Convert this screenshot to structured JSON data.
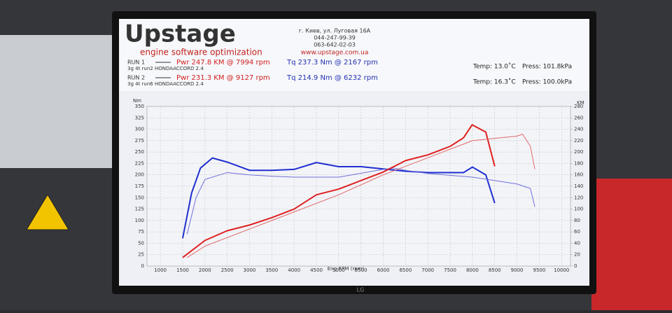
{
  "header": {
    "logo": "Upstage",
    "tagline": "engine software optimization",
    "address": "г. Киев, ул. Луговая 16А",
    "phone1": "044-247-99-39",
    "phone2": "063-642-02-03",
    "website": "www.upstage.com.ua"
  },
  "runs": [
    {
      "name": "RUN 1",
      "car": "3g 4t run2 HONDAACCORD 2.4",
      "power": "Pwr  247.8 KM @ 7994 rpm",
      "torque": "Tq 237.3 Nm @ 2167 rpm",
      "temp": "Temp: 13.0˚C",
      "press": "Press: 101.8kPa"
    },
    {
      "name": "RUN 2",
      "car": "3g 4t run6 HONDAACCORD 2.4",
      "power": "Pwr  231.3 KM @ 9127 rpm",
      "torque": "Tq 214.9 Nm @ 6232 rpm",
      "temp": "Temp: 16.3˚C",
      "press": "Press: 100.0kPa"
    }
  ],
  "brand": "LG",
  "chart_data": {
    "type": "line",
    "x_label": "Eng RPM (rpm)",
    "y_label": "Nm",
    "y2_label": "KM",
    "grid": true,
    "xlim": [
      700,
      10200
    ],
    "xticks": [
      1000,
      1500,
      2000,
      2500,
      3000,
      3500,
      4000,
      4500,
      5000,
      5500,
      6000,
      6500,
      7000,
      7500,
      8000,
      8500,
      9000,
      9500,
      10000
    ],
    "ylim": [
      0,
      350
    ],
    "yticks": [
      0,
      25,
      50,
      75,
      100,
      125,
      150,
      175,
      200,
      225,
      250,
      275,
      300,
      325,
      350
    ],
    "y2lim": [
      0,
      280
    ],
    "y2ticks": [
      0,
      20,
      40,
      60,
      80,
      100,
      120,
      140,
      160,
      180,
      200,
      220,
      240,
      260,
      280
    ],
    "series": [
      {
        "color": "#1f2fd0",
        "width": 2,
        "x": [
          1500,
          1700,
          1900,
          2167,
          2500,
          3000,
          3500,
          4000,
          4500,
          5000,
          5500,
          6000,
          6500,
          7000,
          7500,
          7800,
          8000,
          8300,
          8500
        ],
        "values": [
          61,
          160,
          215,
          237,
          228,
          210,
          210,
          212,
          227,
          218,
          218,
          213,
          208,
          205,
          205,
          205,
          217,
          200,
          138
        ]
      },
      {
        "color": "#7070d8",
        "width": 1,
        "x": [
          1600,
          1800,
          2000,
          2500,
          3000,
          3500,
          4000,
          5000,
          6000,
          6232,
          6500,
          7000,
          8000,
          9000,
          9300,
          9400
        ],
        "values": [
          70,
          150,
          190,
          205,
          200,
          197,
          195,
          195,
          212,
          215,
          210,
          203,
          195,
          180,
          170,
          130
        ]
      },
      {
        "color": "#e02020",
        "width": 2,
        "axis": "y2",
        "x": [
          1500,
          2000,
          2500,
          3000,
          3500,
          4000,
          4500,
          5000,
          5500,
          6000,
          6500,
          7000,
          7500,
          7800,
          7994,
          8300,
          8500
        ],
        "values": [
          15,
          45,
          62,
          72,
          85,
          100,
          125,
          135,
          150,
          165,
          185,
          195,
          210,
          225,
          247.8,
          235,
          175
        ]
      },
      {
        "color": "#e06a6a",
        "width": 1,
        "axis": "y2",
        "x": [
          1600,
          2000,
          3000,
          4000,
          5000,
          6000,
          7000,
          8000,
          9000,
          9127,
          9300,
          9400
        ],
        "values": [
          15,
          35,
          65,
          95,
          125,
          160,
          190,
          220,
          228,
          231.3,
          210,
          170
        ]
      }
    ]
  }
}
